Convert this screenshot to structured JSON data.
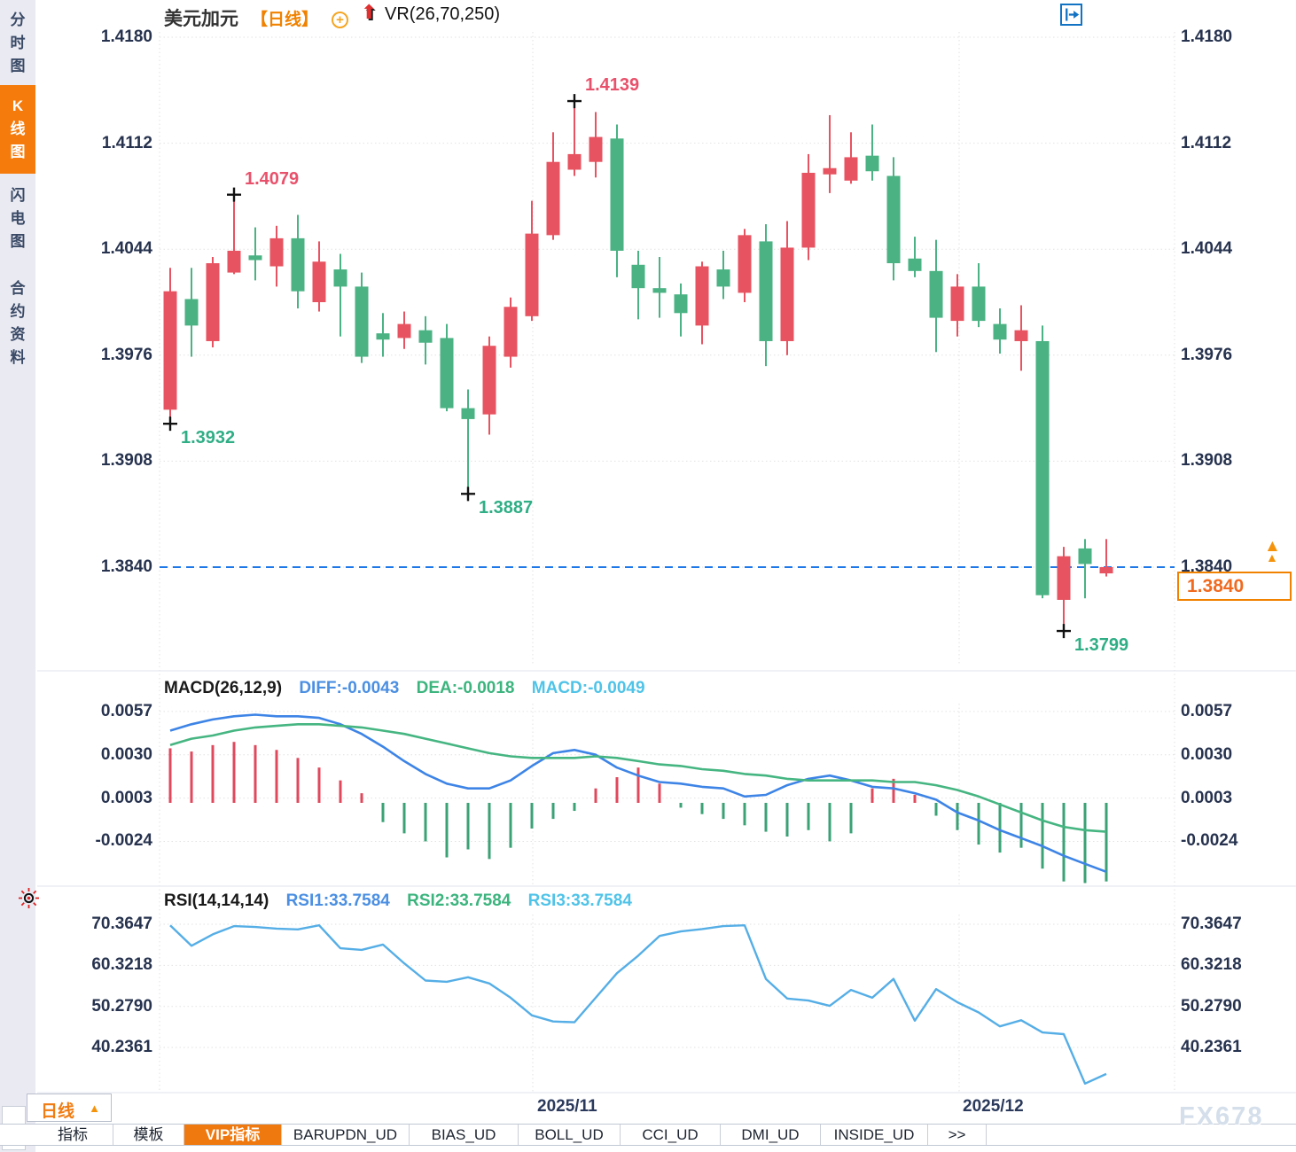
{
  "sidebar": {
    "tabs": [
      {
        "label": "分时图",
        "active": false
      },
      {
        "label": "K线图",
        "active": true
      },
      {
        "label": "闪电图",
        "active": false
      },
      {
        "label": "合约资料",
        "active": false
      }
    ]
  },
  "header": {
    "symbol": "美元加元",
    "period_tag": "【日线】",
    "circle_plus_glyph": "+",
    "overlay_indicator": "VR(26,70,250)"
  },
  "toolbar_icons": [
    "crosshair-tool",
    "axis-zoom-tool",
    "auto-scale-tool-active",
    "jump-to-latest-tool"
  ],
  "colors": {
    "up": "#e75360",
    "down": "#4ab283",
    "accent_orange": "#f08200",
    "diff_line": "#3d84e6",
    "dea_line": "#45b581",
    "rsi_line": "#55aee6",
    "dashed_price_line": "#1f78e8",
    "axis_label": "#26324e"
  },
  "current_price": {
    "value": "1.3840"
  },
  "x_axis": {
    "labels": [
      {
        "text": "2025/11"
      },
      {
        "text": "2025/12"
      }
    ]
  },
  "period_selector": {
    "label": "日线",
    "arrow": "▲"
  },
  "bottom_tabs": [
    {
      "label": "指标",
      "active": false
    },
    {
      "label": "模板",
      "active": false
    },
    {
      "label": "VIP指标",
      "active": true
    },
    {
      "label": "BARUPDN_UD",
      "active": false
    },
    {
      "label": "BIAS_UD",
      "active": false
    },
    {
      "label": "BOLL_UD",
      "active": false
    },
    {
      "label": "CCI_UD",
      "active": false
    },
    {
      "label": "DMI_UD",
      "active": false
    },
    {
      "label": "INSIDE_UD",
      "active": false
    },
    {
      "label": "&gt;&gt;",
      "active": false
    }
  ],
  "watermark": "FX678",
  "chart_data": [
    {
      "type": "candlestick",
      "title": "美元加元 日线 (USD/CAD daily)",
      "ylim": [
        1.377,
        1.419
      ],
      "y_tick_labels": [
        "1.4180",
        "1.4112",
        "1.4044",
        "1.3976",
        "1.3908",
        "1.3840"
      ],
      "y_tick_values": [
        1.418,
        1.4112,
        1.4044,
        1.3976,
        1.3908,
        1.384
      ],
      "dashed_price_line": 1.384,
      "up_color_meaning": "red = close above open (CN convention)",
      "candles_ohlc": [
        [
          1.3941,
          1.4032,
          1.3932,
          1.4017
        ],
        [
          1.4012,
          1.4032,
          1.3975,
          1.3995
        ],
        [
          1.3985,
          1.4039,
          1.3981,
          1.4035
        ],
        [
          1.4029,
          1.4079,
          1.4028,
          1.4043
        ],
        [
          1.404,
          1.4058,
          1.4024,
          1.4037
        ],
        [
          1.4033,
          1.4059,
          1.402,
          1.4051
        ],
        [
          1.4051,
          1.4066,
          1.4006,
          1.4017
        ],
        [
          1.401,
          1.4049,
          1.4004,
          1.4036
        ],
        [
          1.4031,
          1.4041,
          1.3988,
          1.402
        ],
        [
          1.402,
          1.4029,
          1.3971,
          1.3975
        ],
        [
          1.399,
          1.4003,
          1.3975,
          1.3986
        ],
        [
          1.3987,
          1.4004,
          1.398,
          1.3996
        ],
        [
          1.3992,
          1.4001,
          1.397,
          1.3984
        ],
        [
          1.3987,
          1.3996,
          1.394,
          1.3942
        ],
        [
          1.3942,
          1.3954,
          1.3887,
          1.3935
        ],
        [
          1.3938,
          1.3988,
          1.3925,
          1.3982
        ],
        [
          1.3975,
          1.4013,
          1.3968,
          1.4007
        ],
        [
          1.4001,
          1.4075,
          1.3998,
          1.4054
        ],
        [
          1.4053,
          1.4119,
          1.405,
          1.41
        ],
        [
          1.4095,
          1.4139,
          1.4091,
          1.4105
        ],
        [
          1.41,
          1.4132,
          1.409,
          1.4116
        ],
        [
          1.4115,
          1.4124,
          1.4026,
          1.4043
        ],
        [
          1.4034,
          1.4043,
          1.3999,
          1.4019
        ],
        [
          1.4019,
          1.4039,
          1.4,
          1.4016
        ],
        [
          1.4015,
          1.4022,
          1.3988,
          1.4003
        ],
        [
          1.3995,
          1.4036,
          1.3983,
          1.4033
        ],
        [
          1.4031,
          1.4043,
          1.4012,
          1.402
        ],
        [
          1.4016,
          1.4057,
          1.401,
          1.4053
        ],
        [
          1.4049,
          1.406,
          1.3969,
          1.3985
        ],
        [
          1.3985,
          1.4062,
          1.3976,
          1.4045
        ],
        [
          1.4045,
          1.4105,
          1.4037,
          1.4093
        ],
        [
          1.4092,
          1.413,
          1.408,
          1.4096
        ],
        [
          1.4088,
          1.4119,
          1.4086,
          1.4103
        ],
        [
          1.4104,
          1.4124,
          1.4088,
          1.4094
        ],
        [
          1.4091,
          1.4103,
          1.4024,
          1.4035
        ],
        [
          1.4038,
          1.4052,
          1.4026,
          1.403
        ],
        [
          1.403,
          1.405,
          1.3978,
          1.4
        ],
        [
          1.3998,
          1.4028,
          1.3988,
          1.402
        ],
        [
          1.402,
          1.4035,
          1.3994,
          1.3998
        ],
        [
          1.3996,
          1.4006,
          1.3977,
          1.3986
        ],
        [
          1.3985,
          1.4008,
          1.3966,
          1.3992
        ],
        [
          1.3985,
          1.3995,
          1.382,
          1.3822
        ],
        [
          1.3819,
          1.3853,
          1.3799,
          1.3847
        ],
        [
          1.3852,
          1.3858,
          1.382,
          1.3842
        ],
        [
          1.3836,
          1.3858,
          1.3834,
          1.384
        ]
      ],
      "annotations": [
        {
          "text": "1.4079",
          "candle_index": 3,
          "position": "high"
        },
        {
          "text": "1.4139",
          "candle_index": 19,
          "position": "high"
        },
        {
          "text": "1.3932",
          "candle_index": 0,
          "position": "low"
        },
        {
          "text": "1.3887",
          "candle_index": 14,
          "position": "low"
        },
        {
          "text": "1.3799",
          "candle_index": 42,
          "position": "low"
        }
      ]
    },
    {
      "type": "macd",
      "title": "MACD(26,12,9)",
      "readout_labels": [
        "DIFF:-0.0043",
        "DEA:-0.0018",
        "MACD:-0.0049"
      ],
      "y_tick_labels": [
        "0.0057",
        "0.0030",
        "0.0003",
        "-0.0024"
      ],
      "y_tick_values": [
        0.0057,
        0.003,
        0.0003,
        -0.0024
      ],
      "diff": [
        0.0045,
        0.0049,
        0.0052,
        0.0054,
        0.0055,
        0.0054,
        0.0054,
        0.0053,
        0.0049,
        0.0043,
        0.0035,
        0.0026,
        0.0018,
        0.0012,
        0.0009,
        0.0009,
        0.0014,
        0.0023,
        0.0031,
        0.0033,
        0.003,
        0.0022,
        0.0017,
        0.0013,
        0.0012,
        0.001,
        0.0009,
        0.0004,
        0.0005,
        0.0011,
        0.0015,
        0.0017,
        0.0014,
        0.001,
        0.0009,
        0.0006,
        0.0002,
        -0.0006,
        -0.0011,
        -0.0017,
        -0.0022,
        -0.0027,
        -0.0033,
        -0.0038,
        -0.0043
      ],
      "dea": [
        0.0036,
        0.004,
        0.0042,
        0.0045,
        0.0047,
        0.0048,
        0.0049,
        0.0049,
        0.0048,
        0.0047,
        0.0045,
        0.0043,
        0.004,
        0.0037,
        0.0034,
        0.0031,
        0.0029,
        0.0028,
        0.0028,
        0.0028,
        0.0029,
        0.0028,
        0.0026,
        0.0024,
        0.0023,
        0.0021,
        0.002,
        0.0018,
        0.0017,
        0.0015,
        0.0014,
        0.0014,
        0.0014,
        0.0014,
        0.0013,
        0.0013,
        0.0011,
        0.0008,
        0.0004,
        -0.0001,
        -0.0006,
        -0.0011,
        -0.0015,
        -0.0017,
        -0.0018
      ],
      "histogram": [
        0.0034,
        0.0032,
        0.0036,
        0.0038,
        0.0036,
        0.0033,
        0.0028,
        0.0022,
        0.0014,
        0.0006,
        -0.0012,
        -0.0019,
        -0.0024,
        -0.0034,
        -0.0029,
        -0.0035,
        -0.0028,
        -0.0016,
        -0.001,
        -0.0005,
        0.0009,
        0.0016,
        0.0022,
        0.0012,
        -0.0003,
        -0.0007,
        -0.001,
        -0.0014,
        -0.0018,
        -0.0021,
        -0.0017,
        -0.0024,
        -0.0019,
        0.0009,
        0.0015,
        0.0005,
        -0.0008,
        -0.0017,
        -0.0026,
        -0.0031,
        -0.0028,
        -0.0041,
        -0.0049,
        -0.005,
        -0.0049
      ]
    },
    {
      "type": "rsi",
      "title": "RSI(14,14,14)",
      "readout_labels": [
        "RSI1:33.7584",
        "RSI2:33.7584",
        "RSI3:33.7584"
      ],
      "y_tick_labels": [
        "70.3647",
        "60.3218",
        "50.2790",
        "40.2361"
      ],
      "y_tick_values": [
        70.3647,
        60.3218,
        50.279,
        40.2361
      ],
      "values": [
        70.1,
        65.1,
        67.9,
        69.9,
        69.7,
        69.3,
        69.1,
        70.1,
        64.5,
        64.1,
        65.4,
        60.8,
        56.6,
        56.3,
        57.4,
        55.9,
        52.4,
        48.1,
        46.6,
        46.4,
        52.4,
        58.4,
        62.7,
        67.5,
        68.6,
        69.2,
        69.9,
        70.1,
        57.0,
        52.2,
        51.7,
        50.4,
        54.3,
        52.4,
        57.0,
        46.8,
        54.5,
        51.3,
        48.8,
        45.4,
        46.9,
        43.9,
        43.5,
        31.4,
        33.7584
      ]
    }
  ]
}
